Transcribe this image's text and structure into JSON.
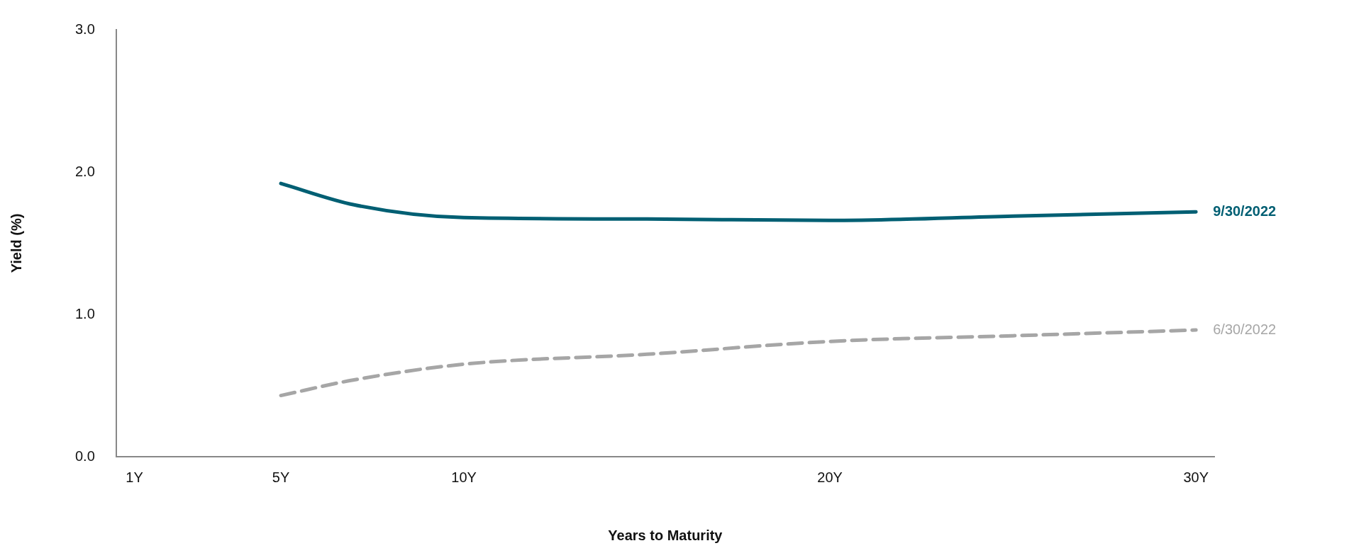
{
  "chart_data": {
    "type": "line",
    "xlabel": "Years to Maturity",
    "ylabel": "Yield (%)",
    "xlim": [
      0.5,
      30.5
    ],
    "xticks": [
      {
        "value": 1,
        "label": "1Y"
      },
      {
        "value": 5,
        "label": "5Y"
      },
      {
        "value": 10,
        "label": "10Y"
      },
      {
        "value": 20,
        "label": "20Y"
      },
      {
        "value": 30,
        "label": "30Y"
      }
    ],
    "ylim": [
      0,
      3
    ],
    "yticks": [
      {
        "value": 0,
        "label": "0.0"
      },
      {
        "value": 1,
        "label": "1.0"
      },
      {
        "value": 2,
        "label": "2.0"
      },
      {
        "value": 3,
        "label": "3.0"
      }
    ],
    "grid": false,
    "legend": false,
    "marker": "none",
    "series": [
      {
        "name": "9/30/2022",
        "color": "#005f73",
        "line_style": "solid",
        "x": [
          5,
          7,
          10,
          15,
          20,
          25,
          30
        ],
        "values": [
          1.92,
          1.77,
          1.68,
          1.67,
          1.66,
          1.69,
          1.72
        ]
      },
      {
        "name": "6/30/2022",
        "color": "#a6a6a6",
        "line_style": "dashed",
        "x": [
          5,
          7,
          10,
          15,
          20,
          25,
          30
        ],
        "values": [
          0.43,
          0.54,
          0.65,
          0.72,
          0.81,
          0.85,
          0.89
        ]
      }
    ]
  }
}
